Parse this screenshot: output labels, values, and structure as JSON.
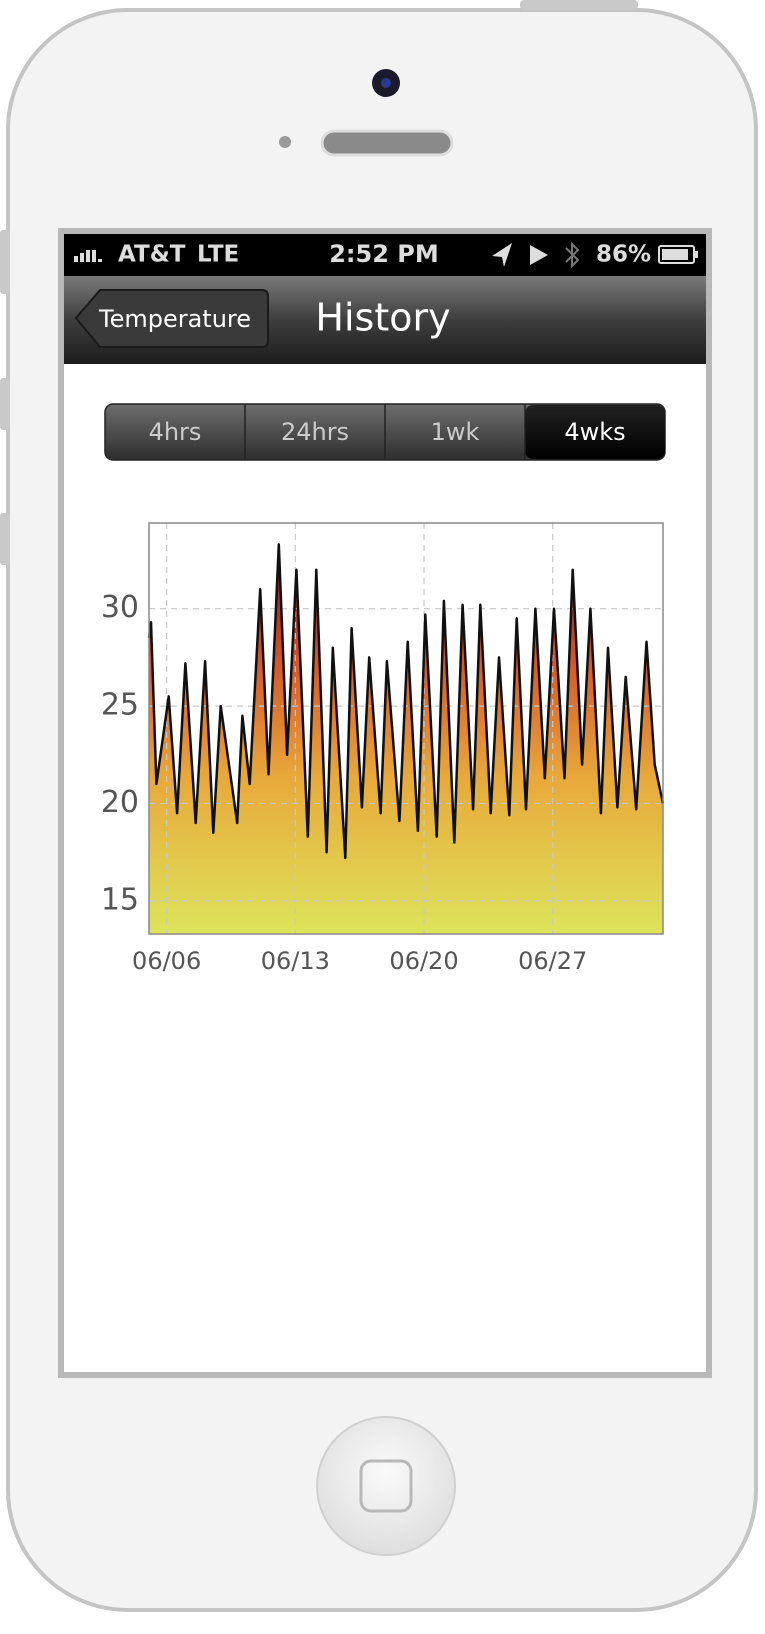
{
  "status_bar": {
    "carrier": "AT&T",
    "network": "LTE",
    "time": "2:52 PM",
    "battery": "86%"
  },
  "nav_bar": {
    "back_button": "Temperature",
    "title": "History"
  },
  "segments": {
    "items": [
      "4hrs",
      "24hrs",
      "1wk",
      "4wks"
    ],
    "selected": 3
  },
  "chart_data": {
    "type": "area",
    "x": [
      5.04,
      5.15,
      5.44,
      6.11,
      6.57,
      7.02,
      7.58,
      8.09,
      8.54,
      8.94,
      9.84,
      10.12,
      10.52,
      11.09,
      11.54,
      12.1,
      12.55,
      13.06,
      13.68,
      14.14,
      14.7,
      15.04,
      15.72,
      16.06,
      16.62,
      17.02,
      17.64,
      17.98,
      18.66,
      19.11,
      19.67,
      20.07,
      20.69,
      21.08,
      21.65,
      22.1,
      22.67,
      23.06,
      23.63,
      24.08,
      24.64,
      25.04,
      25.55,
      26.06,
      26.57,
      27.07,
      27.64,
      28.09,
      28.6,
      29.05,
      29.62,
      30.01,
      30.52,
      30.97,
      31.54,
      32.1,
      32.55,
      33.0
    ],
    "values": [
      28.5,
      29.3,
      21,
      25.5,
      19.5,
      27.2,
      19,
      27.3,
      18.5,
      25,
      19,
      24.5,
      21,
      31,
      21.5,
      33.3,
      22.5,
      32,
      18.3,
      32,
      17.5,
      28,
      17.2,
      29,
      19.8,
      27.5,
      19.5,
      27.3,
      19.1,
      28.3,
      18.6,
      29.7,
      18.3,
      30.4,
      18,
      30.2,
      19.7,
      30.2,
      19.5,
      27.5,
      19.4,
      29.5,
      19.7,
      30,
      21.3,
      30,
      21.3,
      32,
      22,
      30,
      19.5,
      28,
      19.8,
      26.5,
      19.7,
      28.3,
      22,
      20
    ],
    "xlim": [
      5.04,
      33.0
    ],
    "xticks": [
      {
        "value": 6,
        "label": "06/06"
      },
      {
        "value": 13,
        "label": "06/13"
      },
      {
        "value": 20,
        "label": "06/20"
      },
      {
        "value": 27,
        "label": "06/27"
      }
    ],
    "ylim": [
      13.3,
      34.4
    ],
    "yticks": [
      15,
      20,
      25,
      30
    ],
    "grid": true
  }
}
